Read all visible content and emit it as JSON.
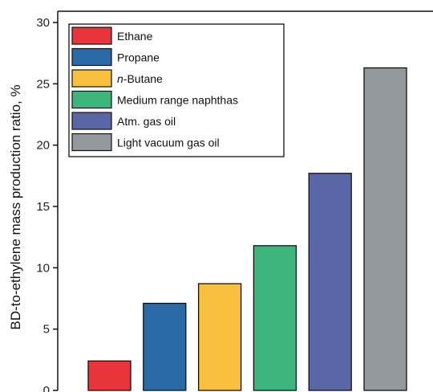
{
  "chart_data": {
    "type": "bar",
    "categories": [
      "Ethane",
      "Propane",
      "n-Butane",
      "Medium range naphthas",
      "Atm. gas oil",
      "Light vacuum gas oil"
    ],
    "values": [
      2.4,
      7.1,
      8.7,
      11.8,
      17.7,
      26.3
    ],
    "colors": [
      "#e8343a",
      "#2a6aa6",
      "#f8c03e",
      "#3db67d",
      "#5a67a6",
      "#93999c"
    ],
    "title": "",
    "xlabel": "",
    "ylabel": "BD-to-ethylene mass production ratio, %",
    "ylim": [
      0,
      30
    ],
    "yticks": [
      "0",
      "5",
      "10",
      "15",
      "20",
      "25",
      "30"
    ],
    "legend": {
      "position": "top-left",
      "entries": [
        {
          "label": "Ethane",
          "italic_prefix": "",
          "rest": "Ethane"
        },
        {
          "label": "Propane",
          "italic_prefix": "",
          "rest": "Propane"
        },
        {
          "label": "n-Butane",
          "italic_prefix": "n",
          "rest": "-Butane"
        },
        {
          "label": "Medium range naphthas",
          "italic_prefix": "",
          "rest": "Medium range naphthas"
        },
        {
          "label": "Atm. gas oil",
          "italic_prefix": "",
          "rest": "Atm. gas oil"
        },
        {
          "label": "Light vacuum gas oil",
          "italic_prefix": "",
          "rest": "Light vacuum gas oil"
        }
      ]
    },
    "grid": false
  }
}
